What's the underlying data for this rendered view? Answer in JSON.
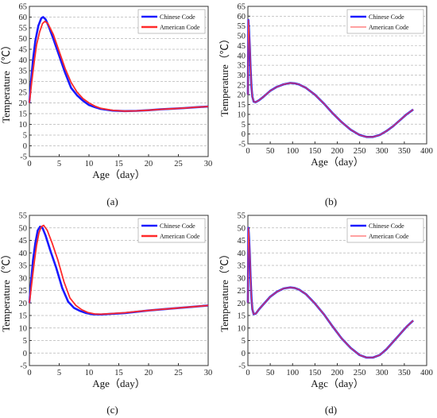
{
  "chart_data": [
    {
      "type": "line",
      "panel_label": "(a)",
      "xlabel": "Age（day）",
      "ylabel": "Temperature（℃）",
      "xlim": [
        0,
        30
      ],
      "ylim": [
        -5,
        65
      ],
      "xticks": [
        0,
        5,
        10,
        15,
        20,
        25,
        30
      ],
      "yticks": [
        -5,
        0,
        5,
        10,
        15,
        20,
        25,
        30,
        35,
        40,
        45,
        50,
        55,
        60,
        65
      ],
      "grid": "horizontal-dashed",
      "legend": "top-right",
      "series": [
        {
          "name": "Chinese Code",
          "color": "#1a1aff",
          "x": [
            0,
            0.3,
            0.6,
            1,
            1.5,
            2,
            2.3,
            2.7,
            3.2,
            4,
            5,
            6,
            7,
            8,
            9,
            10,
            11,
            12,
            14,
            16,
            18,
            20,
            22,
            24,
            26,
            28,
            30
          ],
          "y": [
            20,
            31,
            40,
            49,
            56,
            59.5,
            60,
            59,
            56,
            50,
            42,
            34,
            27,
            23.5,
            21,
            19,
            18,
            17.2,
            16.4,
            16.2,
            16.3,
            16.6,
            17,
            17.3,
            17.6,
            18,
            18.3
          ]
        },
        {
          "name": "American Code",
          "color": "#ff2a2a",
          "x": [
            0,
            0.4,
            0.8,
            1.2,
            1.7,
            2.2,
            2.6,
            3.1,
            4,
            5,
            6,
            7,
            8,
            9,
            10,
            11,
            12,
            14,
            16,
            18,
            20,
            22,
            24,
            26,
            28,
            30
          ],
          "y": [
            20,
            30,
            39,
            47,
            53,
            57,
            58,
            57,
            52,
            44,
            36,
            29.5,
            25,
            22,
            20,
            18.5,
            17.5,
            16.5,
            16.2,
            16.3,
            16.6,
            17,
            17.3,
            17.6,
            18,
            18.3
          ]
        }
      ]
    },
    {
      "type": "line",
      "panel_label": "(b)",
      "xlabel": "Age（day）",
      "ylabel": "Temperature（℃）",
      "xlim": [
        0,
        400
      ],
      "ylim": [
        -5,
        65
      ],
      "xticks": [
        0,
        50,
        100,
        150,
        200,
        250,
        300,
        350,
        400
      ],
      "yticks": [
        -5,
        0,
        5,
        10,
        15,
        20,
        25,
        30,
        35,
        40,
        45,
        50,
        55,
        60,
        65
      ],
      "grid": "horizontal-dashed",
      "legend": "top-right",
      "series": [
        {
          "name": "Chinese Code",
          "color": "#1a1aff",
          "x": [
            0,
            1,
            2,
            4,
            6,
            8,
            10,
            13,
            17,
            25,
            35,
            50,
            65,
            80,
            95,
            105,
            115,
            130,
            150,
            170,
            190,
            210,
            230,
            250,
            265,
            280,
            295,
            310,
            325,
            340,
            355,
            370
          ],
          "y": [
            20,
            58,
            55,
            45,
            33,
            24,
            19,
            16.5,
            16.2,
            17.2,
            19,
            22,
            24,
            25.3,
            26,
            25.8,
            25.2,
            23.5,
            20,
            15.5,
            10.5,
            6,
            2.2,
            -0.5,
            -1.5,
            -1.5,
            -0.5,
            1.5,
            4,
            7,
            10,
            12.5
          ]
        },
        {
          "name": "American Code",
          "color": "#ff4040",
          "x": [
            0,
            1,
            2,
            4,
            6,
            8,
            10,
            13,
            17,
            25,
            35,
            50,
            65,
            80,
            95,
            105,
            115,
            130,
            150,
            170,
            190,
            210,
            230,
            250,
            265,
            280,
            295,
            310,
            325,
            340,
            355,
            370
          ],
          "y": [
            20,
            58,
            55,
            45,
            33,
            24,
            19,
            16.5,
            16.2,
            17.2,
            19,
            22,
            24,
            25.3,
            26,
            25.8,
            25.2,
            23.5,
            20,
            15.5,
            10.5,
            6,
            2.2,
            -0.5,
            -1.5,
            -1.5,
            -0.5,
            1.5,
            4,
            7,
            10,
            12.5
          ]
        }
      ]
    },
    {
      "type": "line",
      "panel_label": "(c)",
      "xlabel": "Age（day）",
      "ylabel": "Temperature（℃）",
      "xlim": [
        0,
        30
      ],
      "ylim": [
        -5,
        55
      ],
      "xticks": [
        0,
        5,
        10,
        15,
        20,
        25,
        30
      ],
      "yticks": [
        -5,
        0,
        5,
        10,
        15,
        20,
        25,
        30,
        35,
        40,
        45,
        50,
        55
      ],
      "grid": "horizontal-dashed",
      "legend": "top-right",
      "series": [
        {
          "name": "Chinese Code",
          "color": "#1a1aff",
          "x": [
            0,
            0.3,
            0.6,
            1,
            1.4,
            1.8,
            2.2,
            2.7,
            3.5,
            4.5,
            5.5,
            6.5,
            7.5,
            8.5,
            9.5,
            10.5,
            12,
            14,
            16,
            18,
            20,
            22,
            24,
            26,
            28,
            30
          ],
          "y": [
            20,
            29,
            37,
            44,
            49,
            50.5,
            50,
            47,
            41,
            34,
            26,
            20.5,
            18,
            16.8,
            16,
            15.5,
            15.4,
            15.7,
            16,
            16.5,
            17,
            17.4,
            17.8,
            18.2,
            18.6,
            19
          ]
        },
        {
          "name": "American Code",
          "color": "#ff2a2a",
          "x": [
            0,
            0.4,
            0.8,
            1.2,
            1.6,
            2,
            2.4,
            3,
            3.8,
            4.8,
            5.8,
            6.8,
            7.8,
            8.8,
            9.8,
            11,
            12,
            14,
            16,
            18,
            20,
            22,
            24,
            26,
            28,
            30
          ],
          "y": [
            20,
            28,
            36,
            43,
            48,
            50.5,
            51,
            49,
            44,
            37,
            28.5,
            22,
            19,
            17.3,
            16.2,
            15.6,
            15.5,
            15.8,
            16.1,
            16.6,
            17,
            17.4,
            17.8,
            18.2,
            18.6,
            19
          ]
        }
      ]
    },
    {
      "type": "line",
      "panel_label": "(d)",
      "xlabel": "Agc（day）",
      "ylabel": "Temperature（℃）",
      "xlim": [
        0,
        400
      ],
      "ylim": [
        -5,
        55
      ],
      "xticks": [
        0,
        50,
        100,
        150,
        200,
        250,
        300,
        350,
        400
      ],
      "yticks": [
        -5,
        0,
        5,
        10,
        15,
        20,
        25,
        30,
        35,
        40,
        45,
        50,
        55
      ],
      "grid": "horizontal-dashed",
      "legend": "top-right",
      "series": [
        {
          "name": "Chinese Code",
          "color": "#1a1aff",
          "x": [
            0,
            1,
            2,
            4,
            6,
            8,
            10,
            13,
            18,
            25,
            35,
            50,
            65,
            80,
            95,
            105,
            115,
            130,
            150,
            170,
            190,
            210,
            230,
            250,
            265,
            280,
            295,
            310,
            325,
            340,
            355,
            370
          ],
          "y": [
            20,
            50,
            48,
            40,
            30,
            22,
            17.5,
            15.5,
            15.8,
            17.5,
            19.5,
            22.5,
            24.5,
            25.8,
            26.2,
            26,
            25.3,
            23.5,
            19.8,
            15.5,
            10.5,
            5.8,
            2,
            -0.8,
            -1.8,
            -1.8,
            -0.8,
            1.5,
            4.5,
            7.5,
            10.5,
            13
          ]
        },
        {
          "name": "American Code",
          "color": "#ff4040",
          "x": [
            0,
            1,
            2,
            4,
            6,
            8,
            10,
            13,
            18,
            25,
            35,
            50,
            65,
            80,
            95,
            105,
            115,
            130,
            150,
            170,
            190,
            210,
            230,
            250,
            265,
            280,
            295,
            310,
            325,
            340,
            355,
            370
          ],
          "y": [
            20,
            50,
            48,
            40,
            30,
            22,
            17.5,
            15.5,
            15.8,
            17.5,
            19.5,
            22.5,
            24.5,
            25.8,
            26.2,
            26,
            25.3,
            23.5,
            19.8,
            15.5,
            10.5,
            5.8,
            2,
            -0.8,
            -1.8,
            -1.8,
            -0.8,
            1.5,
            4.5,
            7.5,
            10.5,
            13
          ]
        }
      ]
    }
  ]
}
